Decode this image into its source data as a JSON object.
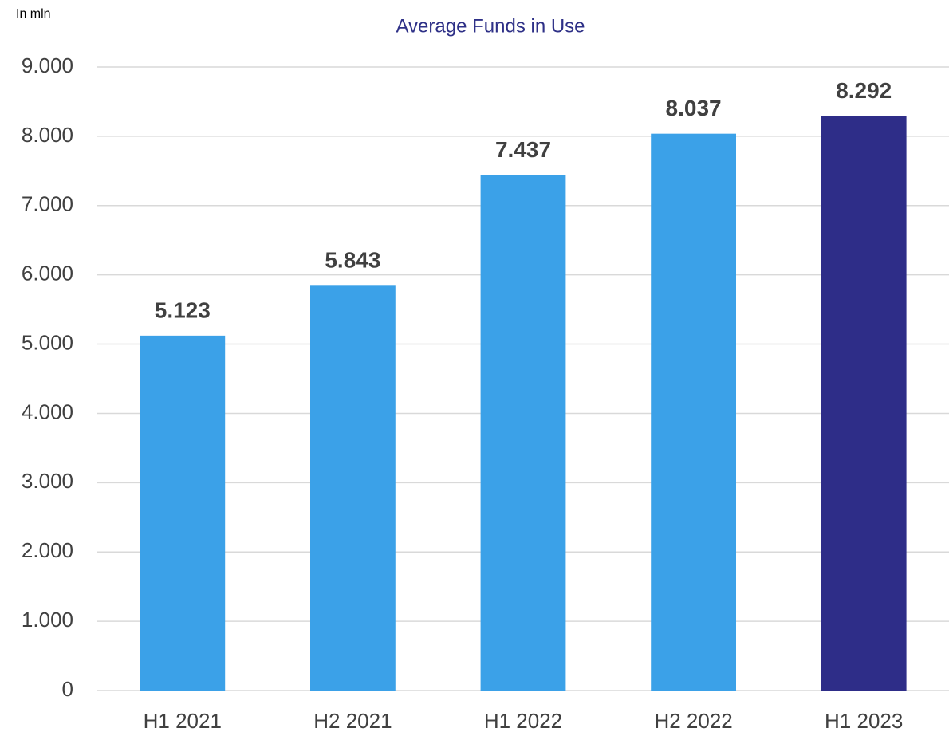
{
  "chart_data": {
    "type": "bar",
    "title": "Average Funds in Use",
    "unit_label": "In mln",
    "categories": [
      "H1 2021",
      "H2 2021",
      "H1 2022",
      "H2 2022",
      "H1 2023"
    ],
    "values": [
      5123,
      5843,
      7437,
      8037,
      8292
    ],
    "value_labels": [
      "5.123",
      "5.843",
      "7.437",
      "8.037",
      "8.292"
    ],
    "colors": [
      "#3ba1e8",
      "#3ba1e8",
      "#3ba1e8",
      "#3ba1e8",
      "#2e2d88"
    ],
    "ylim": [
      0,
      9000
    ],
    "yticks": [
      0,
      {
        "value": 1000,
        "label": "1.000"
      },
      {
        "value": 2000,
        "label": "2.000"
      },
      {
        "value": 3000,
        "label": "3.000"
      },
      {
        "value": 4000,
        "label": "4.000"
      },
      {
        "value": 5000,
        "label": "5.000"
      },
      {
        "value": 6000,
        "label": "6.000"
      },
      {
        "value": 7000,
        "label": "7.000"
      },
      {
        "value": 8000,
        "label": "8.000"
      },
      {
        "value": 9000,
        "label": "9.000"
      }
    ],
    "grid": true
  }
}
